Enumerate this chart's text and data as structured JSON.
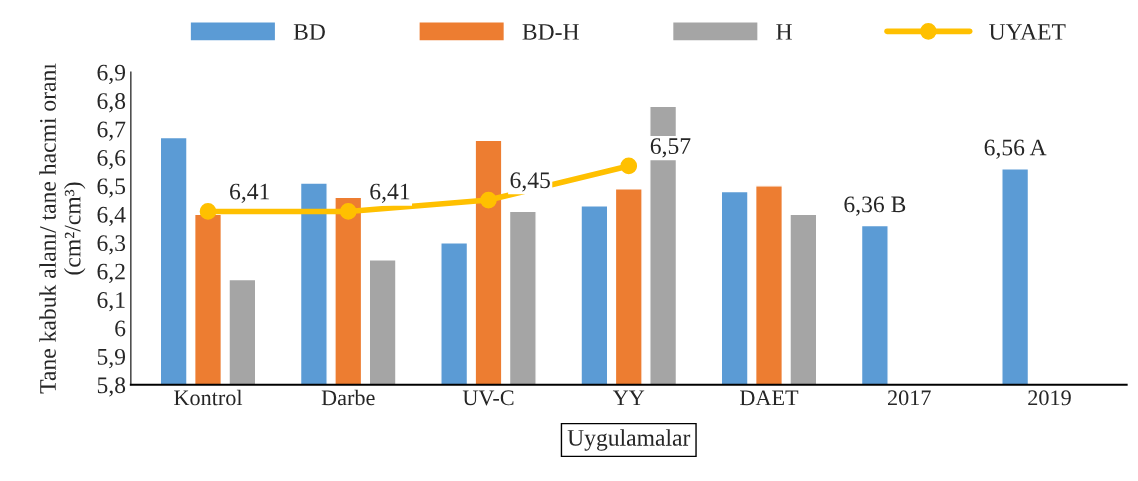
{
  "chart_data": {
    "type": "bar",
    "xlabel": "Uygulamalar",
    "ylabel": "Tane kabuk alanı/ tane hacmi oranı\n(cm²/cm³)",
    "categories": [
      "Kontrol",
      "Darbe",
      "UV-C",
      "YY",
      "DAET",
      "2017",
      "2019"
    ],
    "series": [
      {
        "name": "BD",
        "color": "#5b9bd5",
        "values": [
          6.67,
          6.51,
          6.3,
          6.43,
          6.48,
          6.36,
          6.56
        ],
        "value_labels": [
          null,
          null,
          null,
          null,
          null,
          "6,36 B",
          "6,56 A"
        ]
      },
      {
        "name": "BD-H",
        "color": "#ed7d31",
        "values": [
          6.4,
          6.46,
          6.66,
          6.49,
          6.5,
          null,
          null
        ]
      },
      {
        "name": "H",
        "color": "#a5a5a5",
        "values": [
          6.17,
          6.24,
          6.41,
          6.78,
          6.4,
          null,
          null
        ]
      },
      {
        "name": "UYAET",
        "type": "line",
        "color": "#ffc000",
        "marker": "circle",
        "values": [
          6.41,
          6.41,
          6.45,
          6.57,
          null,
          null,
          null
        ],
        "value_labels": [
          "6,41",
          "6,41",
          "6,45",
          "6,57",
          null,
          null,
          null
        ]
      }
    ],
    "ylim": [
      5.8,
      6.9
    ],
    "yticks": [
      {
        "value": 5.8,
        "label": "5,8"
      },
      {
        "value": 5.9,
        "label": "5,9"
      },
      6,
      {
        "value": 6.1,
        "label": "6,1"
      },
      {
        "value": 6.2,
        "label": "6,2"
      },
      {
        "value": 6.3,
        "label": "6,3"
      },
      {
        "value": 6.4,
        "label": "6,4"
      },
      {
        "value": 6.5,
        "label": "6,5"
      },
      {
        "value": 6.6,
        "label": "6,6"
      },
      {
        "value": 6.7,
        "label": "6,7"
      },
      {
        "value": 6.8,
        "label": "6,8"
      },
      {
        "value": 6.9,
        "label": "6,9"
      }
    ],
    "grid": false,
    "legend": "top"
  }
}
